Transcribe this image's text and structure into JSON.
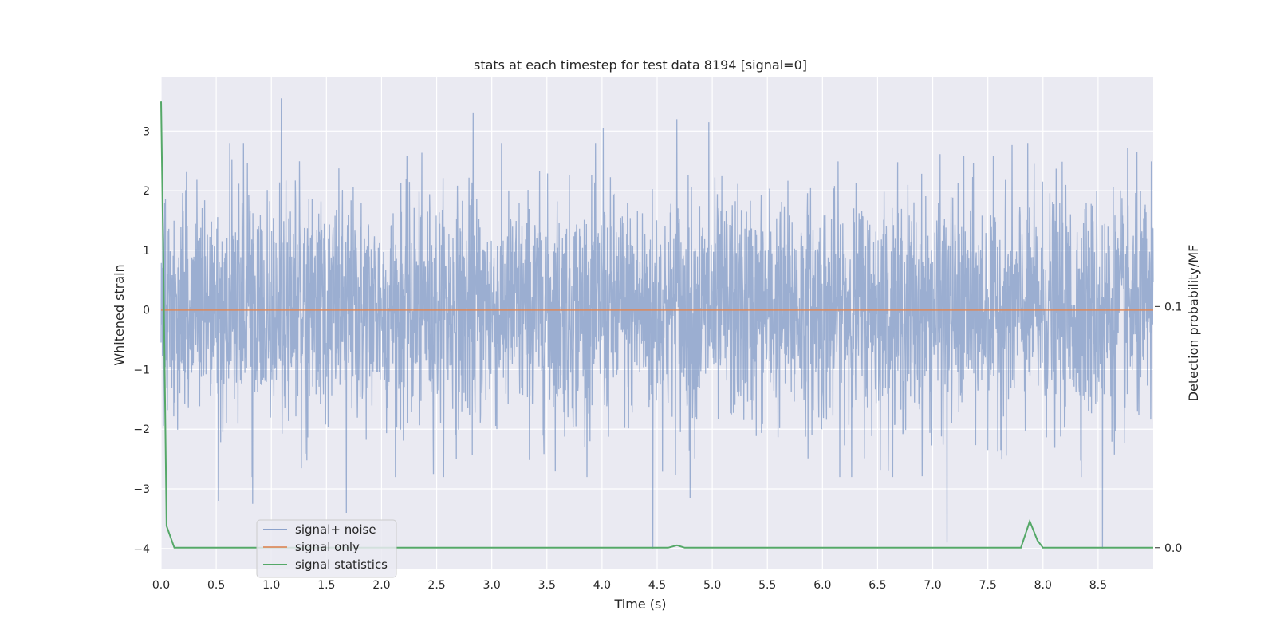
{
  "chart_data": {
    "type": "line",
    "title": "stats at each timestep for test data 8194 [signal=0]",
    "xlabel": "Time (s)",
    "ylabel": "Whitened strain",
    "ylabel_right": "Detection probability/MF",
    "xlim": [
      0.0,
      9.0
    ],
    "ylim": [
      -4.35,
      3.9
    ],
    "ylim_right": [
      -0.009,
      0.195
    ],
    "x_ticks": [
      "0.0",
      "0.5",
      "1.0",
      "1.5",
      "2.0",
      "2.5",
      "3.0",
      "3.5",
      "4.0",
      "4.5",
      "5.0",
      "5.5",
      "6.0",
      "6.5",
      "7.0",
      "7.5",
      "8.0",
      "8.5"
    ],
    "y_ticks": [
      "3",
      "2",
      "1",
      "0",
      "−1",
      "−2",
      "−3",
      "−4"
    ],
    "y_ticks_right": [
      "0.1",
      "0.0"
    ],
    "grid": true,
    "legend_position": "lower-left",
    "colors": {
      "noise": "#4c72b0",
      "signal_only": "#dd8452",
      "statistics": "#55a868",
      "plot_bg": "#eaeaf2",
      "grid": "#ffffff"
    },
    "series": [
      {
        "name": "signal+ noise",
        "description_of_values": "Whitened noise fluctuating around 0 with typical amplitude ±1.5 and spikes up to ~3.5 and down to ~-4.",
        "notable_peaks": [
          {
            "x": 1.09,
            "y": 3.55
          },
          {
            "x": 2.83,
            "y": 3.3
          },
          {
            "x": 4.68,
            "y": 3.2
          },
          {
            "x": 4.97,
            "y": 3.15
          },
          {
            "x": 4.01,
            "y": 3.05
          },
          {
            "x": 0.52,
            "y": -3.2
          },
          {
            "x": 0.83,
            "y": -3.25
          },
          {
            "x": 1.68,
            "y": -3.4
          },
          {
            "x": 4.46,
            "y": -4.0
          },
          {
            "x": 4.8,
            "y": -3.15
          },
          {
            "x": 7.13,
            "y": -3.9
          },
          {
            "x": 8.54,
            "y": -4.0
          }
        ]
      },
      {
        "name": "signal only",
        "x": [
          0.0,
          9.0
        ],
        "y": [
          0.0,
          0.0
        ]
      },
      {
        "name": "signal statistics",
        "axis": "right",
        "x": [
          0.0,
          0.02,
          0.05,
          0.12,
          0.2,
          4.6,
          4.68,
          4.75,
          7.8,
          7.88,
          7.95,
          8.0,
          8.5,
          9.0
        ],
        "y": [
          0.185,
          0.12,
          0.009,
          0.0,
          0.0,
          0.0,
          0.001,
          0.0,
          0.0,
          0.011,
          0.003,
          0.0,
          0.0,
          0.0
        ]
      }
    ]
  }
}
